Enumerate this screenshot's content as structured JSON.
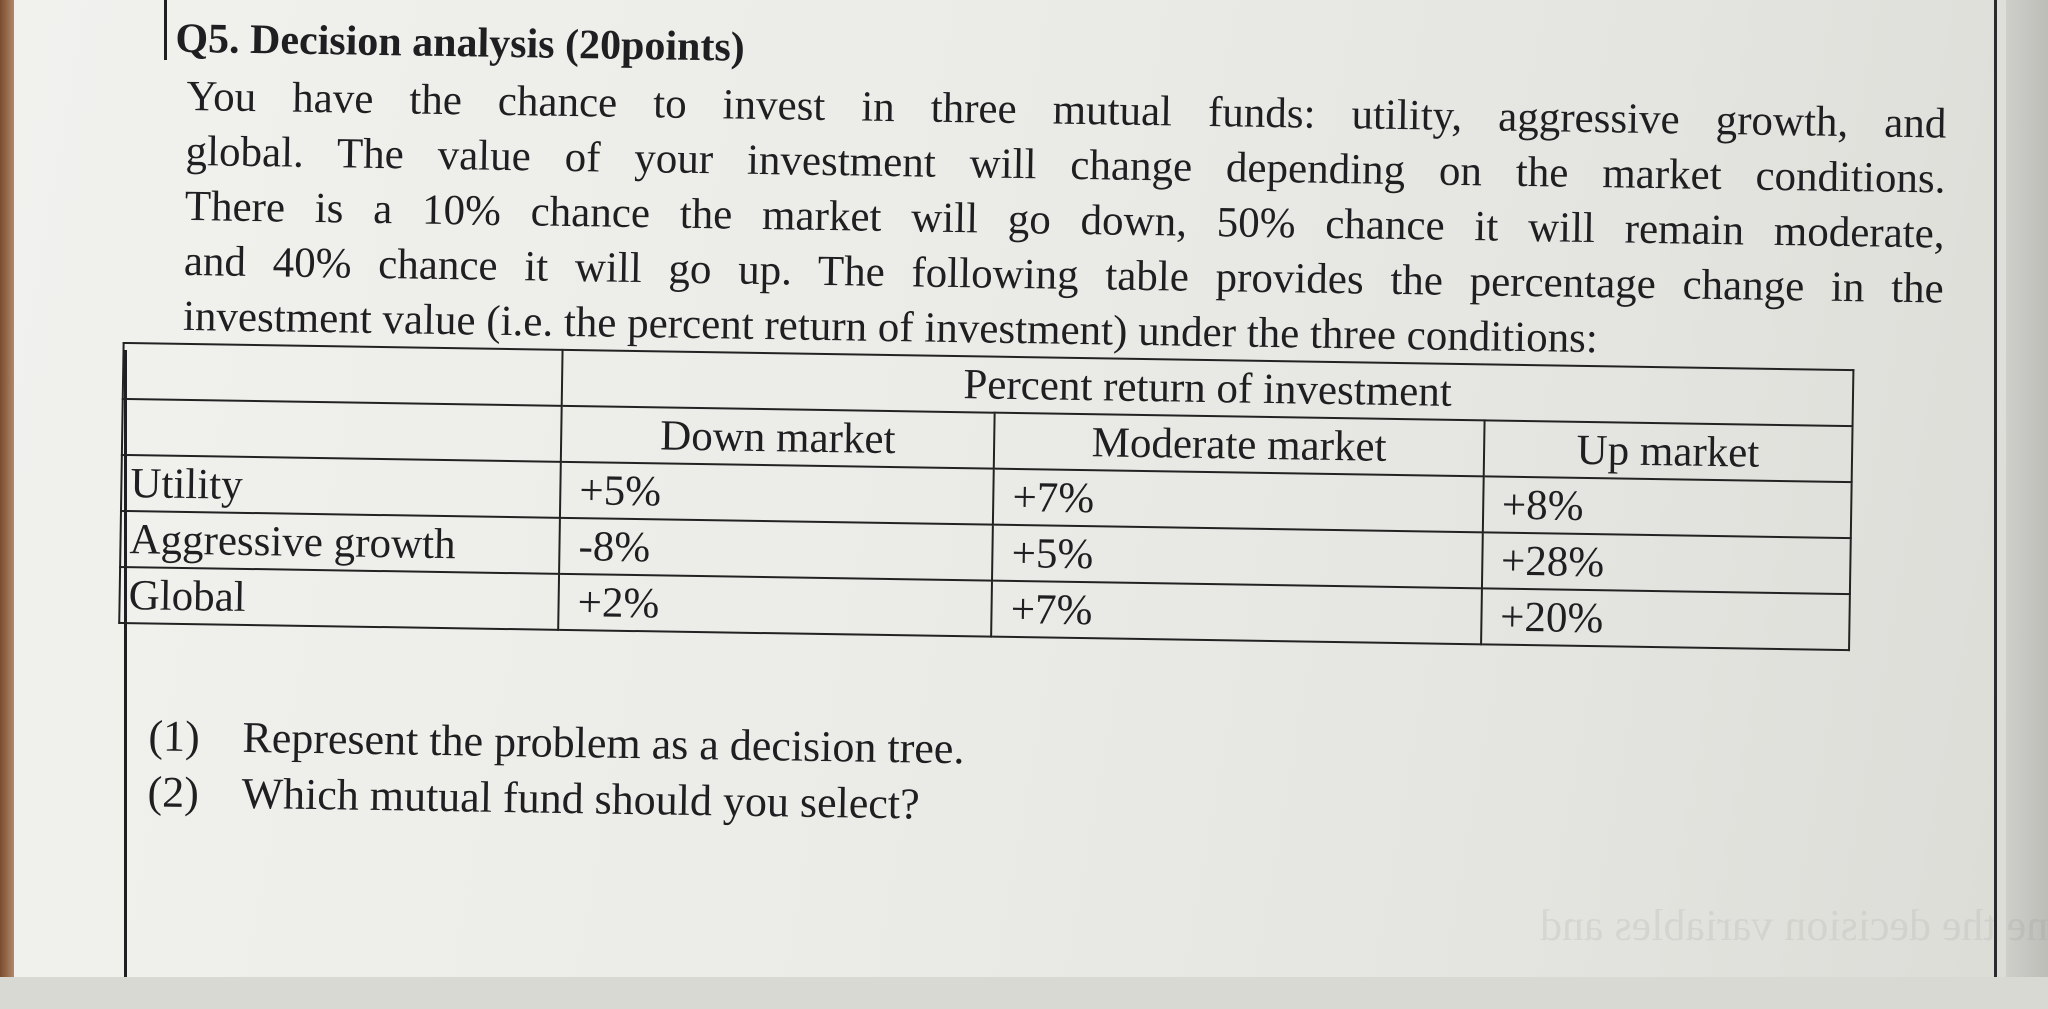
{
  "question": {
    "title": "Q5. Decision analysis (20points)",
    "paragraph_lines": [
      "You have the chance to invest in three mutual funds: utility, aggressive growth, and",
      "global. The value of your investment will change depending on the market conditions.",
      "There is a 10% chance the market will go down, 50% chance it will remain moderate,",
      "and 40% chance it will go up. The following table provides the percentage change in the",
      "investment value (i.e. the percent return of investment) under the three conditions:"
    ]
  },
  "table": {
    "group_header": "Percent return of investment",
    "columns": [
      "Down market",
      "Moderate market",
      "Up market"
    ],
    "rows": [
      {
        "label": "Utility",
        "values": [
          "+5%",
          "+7%",
          "+8%"
        ]
      },
      {
        "label": "Aggressive growth",
        "values": [
          "-8%",
          "+5%",
          "+28%"
        ]
      },
      {
        "label": "Global",
        "values": [
          "+2%",
          "+7%",
          "+20%"
        ]
      }
    ]
  },
  "tasks": [
    {
      "number": "(1)",
      "text": "Represent the problem as a decision tree."
    },
    {
      "number": "(2)",
      "text": "Which mutual fund should you select?"
    }
  ]
}
